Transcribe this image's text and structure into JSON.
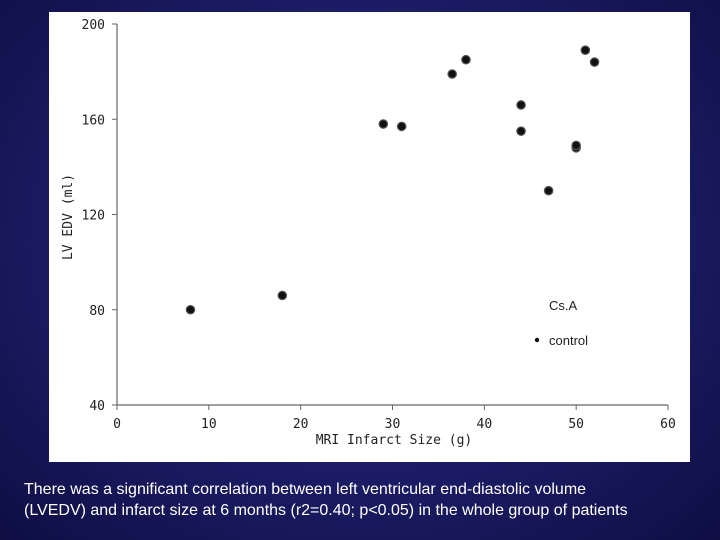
{
  "chart_data": {
    "type": "scatter",
    "xlabel": "MRI Infarct Size (g)",
    "ylabel": "LV EDV (ml)",
    "xlim": [
      0,
      60
    ],
    "ylim": [
      40,
      200
    ],
    "x_ticks": [
      0,
      10,
      20,
      30,
      40,
      50,
      60
    ],
    "y_ticks": [
      40,
      80,
      120,
      160,
      200
    ],
    "grid": false,
    "legend_position": "right",
    "legend_title": "Cs.A",
    "series": [
      {
        "name": "control",
        "color": "#111111",
        "points": [
          {
            "x": 8,
            "y": 80
          },
          {
            "x": 18,
            "y": 86
          },
          {
            "x": 29,
            "y": 158
          },
          {
            "x": 31,
            "y": 157
          },
          {
            "x": 36.5,
            "y": 179
          },
          {
            "x": 38,
            "y": 185
          },
          {
            "x": 44,
            "y": 166
          },
          {
            "x": 44,
            "y": 155
          },
          {
            "x": 47,
            "y": 130
          },
          {
            "x": 50,
            "y": 148
          },
          {
            "x": 50,
            "y": 149
          },
          {
            "x": 51,
            "y": 189
          },
          {
            "x": 52,
            "y": 184
          }
        ]
      }
    ]
  },
  "caption": {
    "line1": "There was a significant correlation between left ventricular end-diastolic volume",
    "line2": "(LVEDV) and infarct size at 6 months (r2=0.40; p<0.05) in the whole group of patients"
  }
}
